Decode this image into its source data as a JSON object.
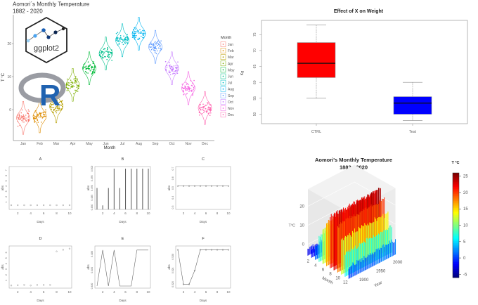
{
  "chart_data": [
    {
      "type": "violin",
      "title": "Aomori´s Monthly Temperature",
      "subtitle": "1882 - 2020",
      "xlabel": "Month",
      "ylabel": "T °C",
      "categories": [
        "Jan",
        "Feb",
        "Mar",
        "Apr",
        "May",
        "Jun",
        "Jul",
        "Aug",
        "Sep",
        "Oct",
        "Nov",
        "Dec"
      ],
      "monthly_mean": [
        -2.5,
        -2,
        1,
        7.5,
        12.5,
        17,
        21,
        23,
        19,
        12.5,
        6.5,
        0.5
      ],
      "yticks": [
        0,
        10,
        20
      ],
      "ylim": [
        -7,
        28
      ],
      "legend_title": "Month",
      "legend_position": "right",
      "colors": [
        "#F8766D",
        "#DE8C00",
        "#B79F00",
        "#7CAE00",
        "#00BA38",
        "#00C08B",
        "#00BFC4",
        "#00B4F0",
        "#619CFF",
        "#C77CFF",
        "#F564E3",
        "#FF64B0"
      ],
      "logos": {
        "ggplot": "ggplot2",
        "r": "R"
      }
    },
    {
      "type": "boxplot",
      "title": "Effect of X on Weight",
      "ylabel": "Kg",
      "categories": [
        "CTRL",
        "Test"
      ],
      "boxes": [
        {
          "min": 55,
          "q1": 61.5,
          "median": 66,
          "q3": 72.5,
          "max": 78,
          "color": "#FF0000"
        },
        {
          "min": 48,
          "q1": 50,
          "median": 53.5,
          "q3": 55.5,
          "max": 60,
          "color": "#0000FF"
        }
      ],
      "yticks": [
        50,
        55,
        60,
        65,
        70,
        75
      ],
      "ylim": [
        47,
        79
      ]
    },
    {
      "type": "small-multiples",
      "xlabel": "Days",
      "ylabel": "abs",
      "x": [
        1,
        2,
        3,
        4,
        5,
        6,
        7,
        8,
        9,
        10
      ],
      "xticks": [
        2,
        4,
        6,
        8,
        10
      ],
      "panels": [
        {
          "title": "A",
          "plot": "points",
          "ylim": [
            0,
            7.3
          ],
          "yticks": [
            1,
            2,
            3,
            4,
            5,
            6,
            7
          ],
          "values": [
            0.4,
            0.4,
            0.4,
            0.4,
            0.4,
            0.4,
            0.4,
            0.4,
            0.4,
            0.4
          ]
        },
        {
          "title": "B",
          "plot": "histogram",
          "ylim": [
            0.48,
            0.5
          ],
          "yticks": [
            "0.480",
            "0.485",
            "0.490",
            "0.495",
            "0.500"
          ],
          "values": [
            0.49,
            0.481,
            0.49,
            0.5,
            0.49,
            0.5,
            0.5,
            0.5,
            0.5,
            0.5
          ]
        },
        {
          "title": "C",
          "plot": "points-line",
          "ylim": [
            0.3,
            0.7
          ],
          "yticks": [
            "0.3",
            "0.4",
            "0.5",
            "0.6",
            "0.7"
          ],
          "values": [
            0.52,
            0.52,
            0.52,
            0.52,
            0.52,
            0.52,
            0.52,
            0.52,
            0.52,
            0.52
          ]
        },
        {
          "title": "D",
          "plot": "points",
          "ylim": [
            0,
            6.8
          ],
          "yticks": [
            1,
            2,
            3,
            4,
            5,
            6
          ],
          "values": [
            0.1,
            0.15,
            0.2,
            0.1,
            0.2,
            0.2,
            0.2,
            6.2,
            6.5,
            6.7
          ]
        },
        {
          "title": "E",
          "plot": "line",
          "ylim": [
            0.48,
            0.4895
          ],
          "yticks": [
            "0.480",
            "0.484",
            "0.488"
          ],
          "values": [
            0.48,
            0.489,
            0.48,
            0.489,
            0.48,
            0.48,
            0.48,
            0.489,
            0.489,
            0.489
          ]
        },
        {
          "title": "F",
          "plot": "line-points",
          "ylim": [
            0.5195,
            0.5305
          ],
          "yticks": [
            "0.520",
            "0.524",
            "0.528"
          ],
          "values": [
            0.53,
            0.52,
            0.52,
            0.524,
            0.53,
            0.53,
            0.53,
            0.53,
            0.53,
            0.53
          ]
        }
      ]
    },
    {
      "type": "3d-histogram",
      "title": "Aomori's Monthly Temperature",
      "subtitle": "1882 - 2020",
      "xlabel": "Month",
      "ylabel": "Year",
      "zlabel": "T°C",
      "xticks": [
        2,
        4,
        6,
        8,
        10,
        12
      ],
      "yticks": [
        1900,
        1950,
        2000
      ],
      "zticks": [
        0,
        10,
        20
      ],
      "year_range": [
        1882,
        2020
      ],
      "monthly_mean": [
        -2.5,
        -2,
        1,
        7.5,
        12.5,
        17,
        21,
        23,
        19,
        12.5,
        6.5,
        0.5
      ],
      "colorbar": {
        "title": "T °C",
        "ticks": [
          25,
          20,
          15,
          10,
          5,
          0,
          -5
        ],
        "range": [
          -6,
          26
        ],
        "colormap": "jet"
      }
    }
  ]
}
